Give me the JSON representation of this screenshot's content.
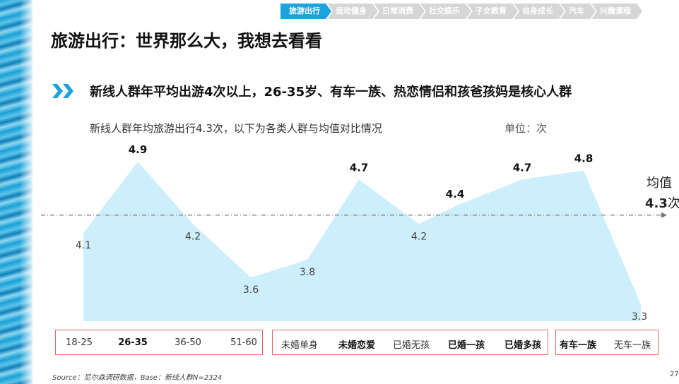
{
  "nav": {
    "tabs": [
      {
        "label": "旅游出行",
        "active": true
      },
      {
        "label": "运动健身",
        "active": false
      },
      {
        "label": "日常消费",
        "active": false
      },
      {
        "label": "社交娱乐",
        "active": false
      },
      {
        "label": "子女教育",
        "active": false
      },
      {
        "label": "自身成长",
        "active": false
      },
      {
        "label": "汽车",
        "active": false
      },
      {
        "label": "兴趣课程",
        "active": false
      }
    ],
    "active_color": "#1aa3de",
    "inactive_color": "#d6d6d6"
  },
  "title": "旅游出行：世界那么大，我想去看看",
  "headline": "新线人群年平均出游4次以上，26-35岁、有车一族、热恋情侣和孩爸孩妈是核心人群",
  "subline": "新线人群年均旅游出行4.3次，以下为各类人群与均值对比情况",
  "unit": "单位：次",
  "average": {
    "label": "均值",
    "value": "4.3",
    "suffix": "次"
  },
  "source": "Source：尼尔森调研数据，Base：新线人群N=2324",
  "page_number": "27",
  "chart_data": {
    "type": "area",
    "title": "",
    "xlabel": "",
    "ylabel": "",
    "ylim": [
      3.0,
      5.0
    ],
    "average_line": 4.3,
    "fill_color": "#cdeefb",
    "average_line_color": "#777777",
    "categories": [
      "18-25",
      "26-35",
      "36-50",
      "51-60",
      "未婚单身",
      "未婚恋爱",
      "已婚无孩",
      "已婚一孩",
      "已婚多孩",
      "有车一族",
      "无车一族"
    ],
    "values": [
      4.1,
      4.9,
      4.2,
      3.6,
      3.8,
      4.7,
      4.2,
      4.4,
      4.7,
      4.8,
      3.3
    ],
    "value_labels": [
      "4.1",
      "4.9",
      "4.2",
      "3.6",
      "3.8",
      "4.7",
      "4.2",
      "4.4",
      "4.7",
      "4.8",
      "3.3"
    ],
    "highlighted": [
      false,
      true,
      false,
      false,
      false,
      true,
      false,
      true,
      true,
      true,
      false
    ],
    "groups": [
      {
        "name": "age",
        "members": [
          0,
          1,
          2,
          3
        ]
      },
      {
        "name": "marital",
        "members": [
          4,
          5,
          6,
          7,
          8
        ]
      },
      {
        "name": "car",
        "members": [
          9,
          10
        ]
      }
    ]
  }
}
